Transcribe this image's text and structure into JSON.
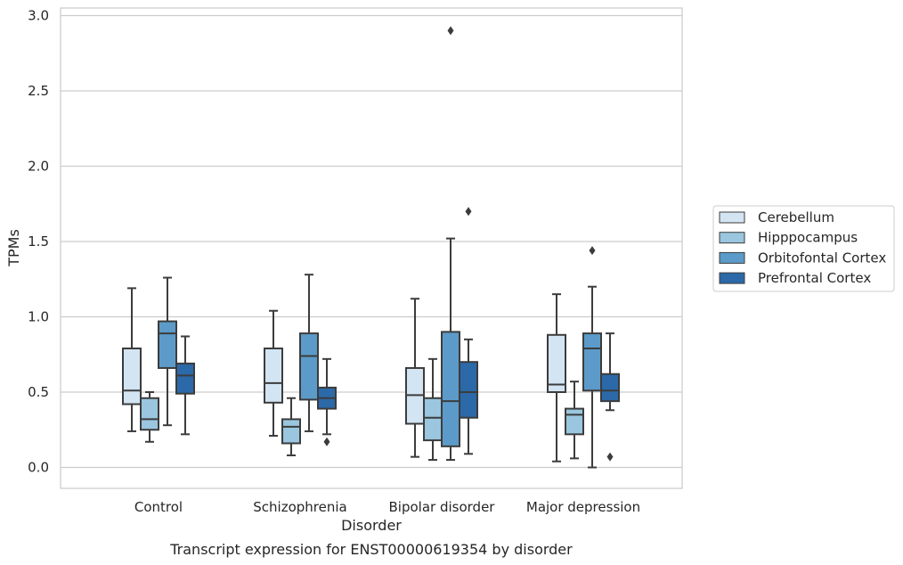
{
  "chart_data": {
    "type": "boxplot",
    "xlabel": "Disorder",
    "ylabel": "TPMs",
    "caption": "Transcript expression for ENST00000619354 by disorder",
    "ylim": [
      -0.14,
      3.05
    ],
    "yticks": [
      "0.0",
      "0.5",
      "1.0",
      "1.5",
      "2.0",
      "2.5",
      "3.0"
    ],
    "ytick_values": [
      0,
      0.5,
      1.0,
      1.5,
      2.0,
      2.5,
      3.0
    ],
    "grid": true,
    "legend_position": "right",
    "categories": [
      "Control",
      "Schizophrenia",
      "Bipolar disorder",
      "Major depression"
    ],
    "series": [
      {
        "name": "Cerebellum",
        "color": "#d3e4f3",
        "boxes": [
          {
            "whislo": 0.24,
            "q1": 0.42,
            "med": 0.51,
            "q3": 0.79,
            "whishi": 1.19,
            "fliers": []
          },
          {
            "whislo": 0.21,
            "q1": 0.43,
            "med": 0.56,
            "q3": 0.79,
            "whishi": 1.04,
            "fliers": []
          },
          {
            "whislo": 0.07,
            "q1": 0.29,
            "med": 0.48,
            "q3": 0.66,
            "whishi": 1.12,
            "fliers": []
          },
          {
            "whislo": 0.04,
            "q1": 0.5,
            "med": 0.55,
            "q3": 0.88,
            "whishi": 1.15,
            "fliers": []
          }
        ]
      },
      {
        "name": "Hipppocampus",
        "color": "#9ac6df",
        "boxes": [
          {
            "whislo": 0.17,
            "q1": 0.25,
            "med": 0.32,
            "q3": 0.46,
            "whishi": 0.5,
            "fliers": []
          },
          {
            "whislo": 0.08,
            "q1": 0.16,
            "med": 0.27,
            "q3": 0.32,
            "whishi": 0.46,
            "fliers": []
          },
          {
            "whislo": 0.05,
            "q1": 0.18,
            "med": 0.33,
            "q3": 0.46,
            "whishi": 0.72,
            "fliers": []
          },
          {
            "whislo": 0.06,
            "q1": 0.22,
            "med": 0.35,
            "q3": 0.39,
            "whishi": 0.57,
            "fliers": []
          }
        ]
      },
      {
        "name": "Orbitofontal Cortex",
        "color": "#5c9bc9",
        "boxes": [
          {
            "whislo": 0.28,
            "q1": 0.66,
            "med": 0.89,
            "q3": 0.97,
            "whishi": 1.26,
            "fliers": []
          },
          {
            "whislo": 0.24,
            "q1": 0.45,
            "med": 0.74,
            "q3": 0.89,
            "whishi": 1.28,
            "fliers": []
          },
          {
            "whislo": 0.05,
            "q1": 0.14,
            "med": 0.44,
            "q3": 0.9,
            "whishi": 1.52,
            "fliers": [
              2.9
            ]
          },
          {
            "whislo": 0.0,
            "q1": 0.51,
            "med": 0.79,
            "q3": 0.89,
            "whishi": 1.2,
            "fliers": [
              1.44
            ]
          }
        ]
      },
      {
        "name": "Prefrontal Cortex",
        "color": "#2b69a8",
        "boxes": [
          {
            "whislo": 0.22,
            "q1": 0.49,
            "med": 0.61,
            "q3": 0.69,
            "whishi": 0.87,
            "fliers": []
          },
          {
            "whislo": 0.22,
            "q1": 0.39,
            "med": 0.46,
            "q3": 0.53,
            "whishi": 0.72,
            "fliers": [
              0.17
            ]
          },
          {
            "whislo": 0.09,
            "q1": 0.33,
            "med": 0.5,
            "q3": 0.7,
            "whishi": 0.85,
            "fliers": [
              1.7
            ]
          },
          {
            "whislo": 0.38,
            "q1": 0.44,
            "med": 0.51,
            "q3": 0.62,
            "whishi": 0.89,
            "fliers": [
              0.07
            ]
          }
        ]
      }
    ]
  }
}
